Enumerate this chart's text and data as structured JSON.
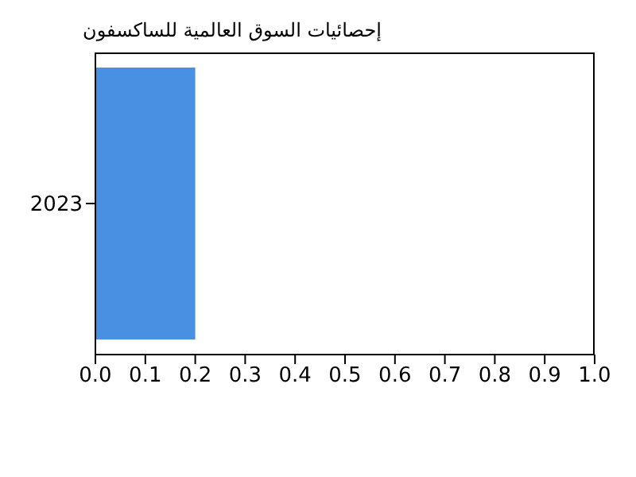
{
  "chart_data": {
    "type": "bar",
    "orientation": "horizontal",
    "title": "إحصائيات السوق العالمية للساكسفون",
    "categories": [
      "2023"
    ],
    "values": [
      0.2
    ],
    "color": "#4a90e2",
    "xlim": [
      0,
      1
    ],
    "xticks": [
      {
        "value": 0,
        "label": "0.0"
      },
      0.1,
      0.2,
      0.3,
      0.4,
      0.5,
      0.6,
      0.7,
      0.8,
      0.9,
      {
        "value": 1,
        "label": "1.0"
      }
    ]
  }
}
